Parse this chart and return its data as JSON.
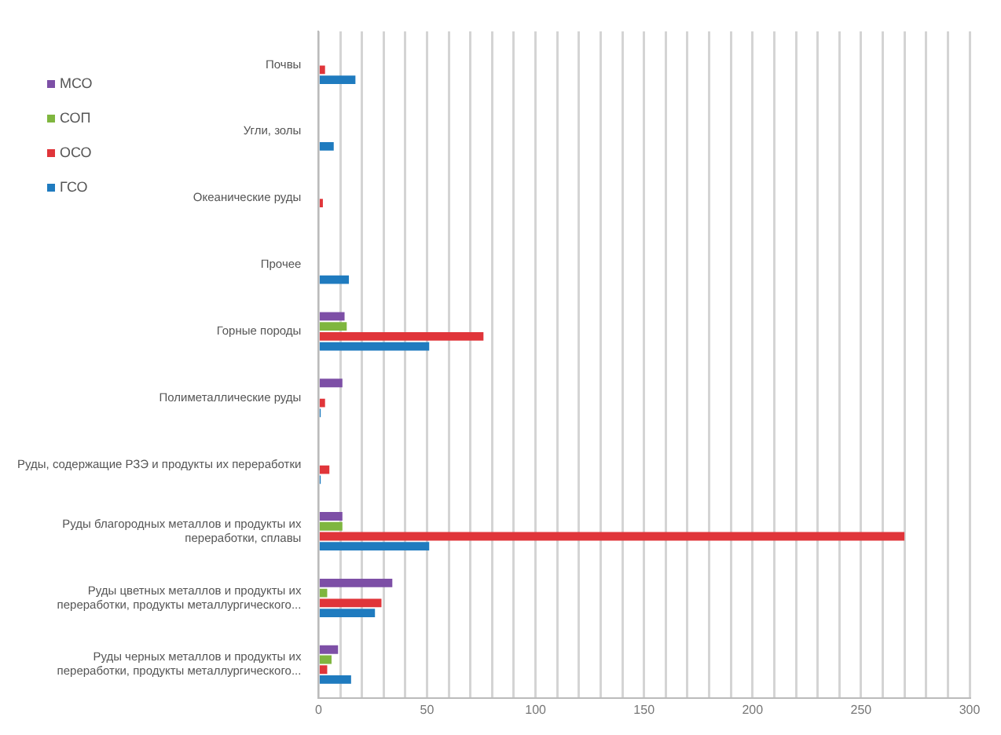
{
  "chart_data": {
    "type": "bar",
    "orientation": "horizontal",
    "categories": [
      "Почвы",
      "Угли, золы",
      "Океанические руды",
      "Прочее",
      "Горные породы",
      "Полиметаллические руды",
      "Руды, содержащие РЗЭ и продукты их переработки",
      "Руды благородных металлов и продукты их переработки, сплавы",
      "Руды цветных металлов и продукты их переработки, продукты металлургического...",
      "Руды черных металлов и продукты их переработки, продукты металлургического..."
    ],
    "series": [
      {
        "name": "МСО",
        "color": "#7d4fa6",
        "values": [
          null,
          null,
          null,
          null,
          12,
          11,
          null,
          11,
          34,
          9
        ]
      },
      {
        "name": "СОП",
        "color": "#7fb63f",
        "values": [
          null,
          null,
          null,
          null,
          13,
          null,
          null,
          11,
          4,
          6
        ]
      },
      {
        "name": "ОСО",
        "color": "#e0353a",
        "values": [
          3,
          null,
          2,
          null,
          76,
          3,
          5,
          270,
          29,
          4
        ]
      },
      {
        "name": "ГСО",
        "color": "#1f7bbf",
        "values": [
          17,
          7,
          null,
          14,
          51,
          1,
          1,
          51,
          26,
          15
        ]
      }
    ],
    "xlim": [
      0,
      300
    ],
    "xticks": [
      0,
      {
        "value": 10,
        "label": null
      },
      {
        "value": 20,
        "label": null
      },
      {
        "value": 30,
        "label": null
      },
      {
        "value": 40,
        "label": null
      },
      50,
      {
        "value": 60,
        "label": null
      },
      {
        "value": 70,
        "label": null
      },
      {
        "value": 80,
        "label": null
      },
      {
        "value": 90,
        "label": null
      },
      100,
      {
        "value": 110,
        "label": null
      },
      {
        "value": 120,
        "label": null
      },
      {
        "value": 130,
        "label": null
      },
      {
        "value": 140,
        "label": null
      },
      150,
      {
        "value": 160,
        "label": null
      },
      {
        "value": 170,
        "label": null
      },
      {
        "value": 180,
        "label": null
      },
      {
        "value": 190,
        "label": null
      },
      200,
      {
        "value": 210,
        "label": null
      },
      {
        "value": 220,
        "label": null
      },
      {
        "value": 230,
        "label": null
      },
      {
        "value": 240,
        "label": null
      },
      250,
      {
        "value": 260,
        "label": null
      },
      {
        "value": 270,
        "label": null
      },
      {
        "value": 280,
        "label": null
      },
      {
        "value": 290,
        "label": null
      },
      300
    ],
    "grid": "x",
    "legend": "left"
  }
}
